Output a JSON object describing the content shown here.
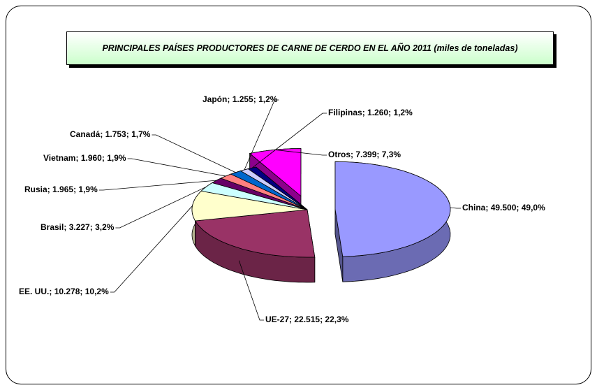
{
  "chart_data": {
    "type": "pie3d",
    "title": "PRINCIPALES PAÍSES PRODUCTORES DE CARNE DE CERDO EN EL AÑO 2011 (miles de toneladas)",
    "categories": [
      "China",
      "UE-27",
      "EE. UU.",
      "Brasil",
      "Rusia",
      "Vietnam",
      "Canadá",
      "Japón",
      "Filipinas",
      "Otros"
    ],
    "values": [
      49500,
      22515,
      10278,
      3227,
      1965,
      1960,
      1753,
      1255,
      1260,
      7399
    ],
    "value_labels": [
      "49.500",
      "22.515",
      "10.278",
      "3.227",
      "1.965",
      "1.960",
      "1.753",
      "1.255",
      "1.260",
      "7.399"
    ],
    "percents": [
      49.0,
      22.3,
      10.2,
      3.2,
      1.9,
      1.9,
      1.7,
      1.2,
      1.2,
      7.3
    ],
    "percent_labels": [
      "49,0%",
      "22,3%",
      "10,2%",
      "3,2%",
      "1,9%",
      "1,9%",
      "1,7%",
      "1,2%",
      "1,2%",
      "7,3%"
    ],
    "label_separator": "; ",
    "colors": [
      "#9999ff",
      "#993366",
      "#ffffcc",
      "#ccffff",
      "#660066",
      "#ff8080",
      "#0066cc",
      "#ccccff",
      "#000080",
      "#ff00ff"
    ],
    "exploded": [
      0,
      9
    ]
  }
}
